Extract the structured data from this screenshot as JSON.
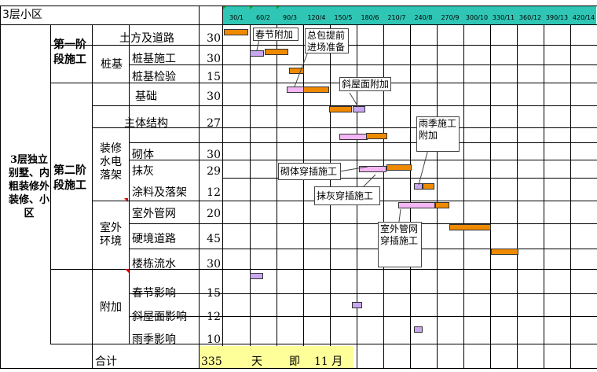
{
  "title": "3层小区",
  "timeline": [
    "30/1",
    "60/2",
    "90/3",
    "120/4",
    "150/5",
    "180/6",
    "210/7",
    "240/8",
    "270/9",
    "300/10",
    "330/11",
    "360/12",
    "390/13",
    "420/14"
  ],
  "project": "3层独立别墅、内粗装修外装修、小区",
  "phases": {
    "phase1": "第一阶段施工",
    "phase2": "第二阶段施工",
    "pile": "桩基",
    "decor": "装修水电落架",
    "outdoor": "室外环境",
    "extra": "附加"
  },
  "tasks": [
    {
      "name": "土方及道路",
      "days": "30"
    },
    {
      "name": "桩基施工",
      "days": "30"
    },
    {
      "name": "桩基检验",
      "days": "15"
    },
    {
      "name": "基础",
      "days": "30"
    },
    {
      "name": "主体结构",
      "days": "27"
    },
    {
      "name": "砌体",
      "days": "30"
    },
    {
      "name": "抹灰",
      "days": "29"
    },
    {
      "name": "涂料及落架",
      "days": "12"
    },
    {
      "name": "室外管网",
      "days": "20"
    },
    {
      "name": "硬境道路",
      "days": "45"
    },
    {
      "name": "楼栋流水",
      "days": "30"
    },
    {
      "name": "春节影响",
      "days": "15"
    },
    {
      "name": "斜屋面影响",
      "days": "12"
    },
    {
      "name": "雨季影响",
      "days": "10"
    }
  ],
  "total": {
    "label": "合计",
    "value": "335",
    "unit_day": "天",
    "approx": "即",
    "months": "11 月"
  },
  "callouts": [
    {
      "id": "c1",
      "text": "春节附加"
    },
    {
      "id": "c2",
      "text": "总包提前进场准备"
    },
    {
      "id": "c3",
      "text": "斜屋面附加"
    },
    {
      "id": "c4",
      "text": "雨季施工附加"
    },
    {
      "id": "c5",
      "text": "砌体穿插施工"
    },
    {
      "id": "c6",
      "text": "抹灰穿插施工"
    },
    {
      "id": "c7",
      "text": "室外管网穿插施工"
    }
  ],
  "colors": {
    "header": "#2fc6b5",
    "total_bg": "#ffff99",
    "bar_main": "#ef8a00",
    "bar_extra": "#c9a6f0",
    "bar_overlap": "#f5b6f5"
  }
}
